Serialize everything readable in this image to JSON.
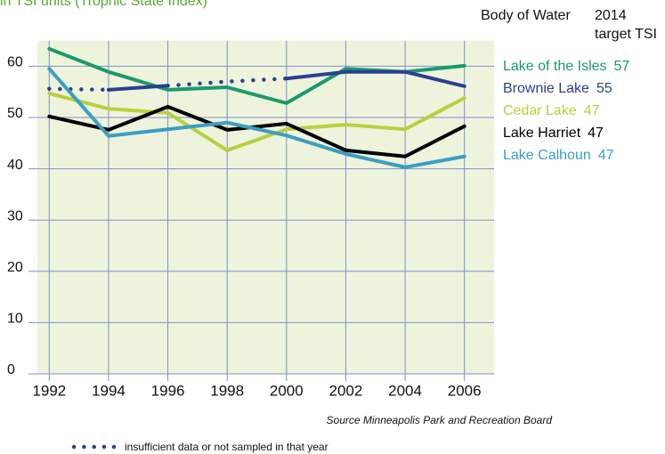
{
  "chart_data": {
    "type": "line",
    "subtitle": "in TSI units (Trophic State Index)",
    "legend_title": "Body of Water",
    "target_title": [
      "2014",
      "target TSI"
    ],
    "x": [
      1992,
      1994,
      1996,
      1998,
      2000,
      2002,
      2004,
      2006
    ],
    "xlim": [
      1991.6,
      2007
    ],
    "xticks": [
      1992,
      1994,
      1996,
      1998,
      2000,
      2002,
      2004,
      2006
    ],
    "ylim": [
      0,
      65
    ],
    "yticks": [
      0,
      10,
      20,
      30,
      40,
      50,
      60
    ],
    "grid": true,
    "plot_background": "#eef3dc",
    "series": [
      {
        "name": "Lake of the Isles",
        "target": 57,
        "color": "#1a9a6a",
        "values": [
          63.4,
          58.9,
          55.4,
          55.9,
          52.8,
          59.5,
          58.9,
          60.1
        ]
      },
      {
        "name": "Brownie Lake",
        "target": 55,
        "color": "#2b3f91",
        "values": [
          55.6,
          55.4,
          56.2,
          57,
          57.6,
          58.9,
          58.9,
          56.1
        ],
        "dotted_segments": [
          0,
          2,
          3
        ]
      },
      {
        "name": "Cedar Lake",
        "target": 47,
        "color": "#b8d03c",
        "values": [
          54.7,
          51.7,
          50.9,
          43.6,
          47.7,
          48.6,
          47.7,
          53.8
        ]
      },
      {
        "name": "Lake Harriet",
        "target": 47,
        "color": "#000000",
        "values": [
          50.2,
          47.6,
          52.1,
          47.6,
          48.8,
          43.6,
          42.4,
          48.3
        ]
      },
      {
        "name": "Lake Calhoun",
        "target": 47,
        "color": "#3a9fc2",
        "values": [
          59.5,
          46.4,
          47.7,
          49,
          46.5,
          42.9,
          40.3,
          42.4
        ]
      }
    ],
    "source": "Source Minneapolis Park and Recreation Board",
    "dotted_note": "insufficient data or not sampled in that  year"
  }
}
